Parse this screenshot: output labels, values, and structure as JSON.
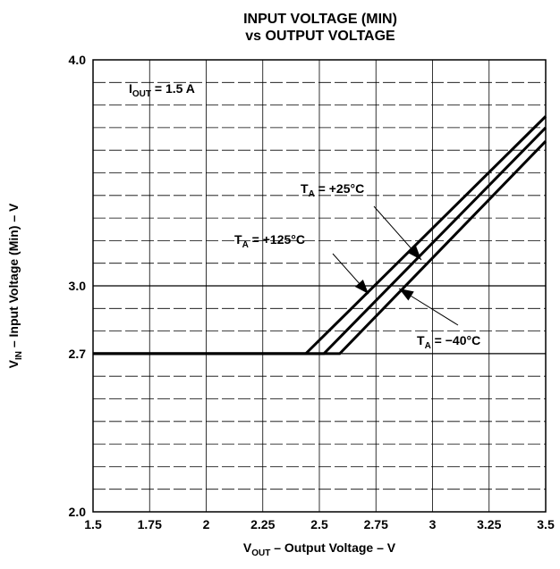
{
  "chart_data": {
    "type": "line",
    "title_lines": [
      "INPUT VOLTAGE (MIN)",
      "vs OUTPUT VOLTAGE"
    ],
    "xlabel": {
      "main": "V",
      "sub": "OUT",
      "rest": " – Output Voltage – V"
    },
    "ylabel": {
      "main": "V",
      "sub": "IN",
      "rest": " – Input Voltage (Min) – V"
    },
    "xlim": [
      1.5,
      3.5
    ],
    "ylim": [
      2.0,
      4.0
    ],
    "x_ticks": [
      1.5,
      1.75,
      2.0,
      2.25,
      2.5,
      2.75,
      3.0,
      3.25,
      3.5
    ],
    "x_tick_labels": [
      "1.5",
      "1.75",
      "2",
      "2.25",
      "2.5",
      "2.75",
      "3",
      "3.25",
      "3.5"
    ],
    "y_ticks": [
      2.0,
      2.7,
      3.0,
      4.0
    ],
    "y_tick_labels": [
      "2.0",
      "2.7",
      "3.0",
      "4.0"
    ],
    "y_grid": [
      2.1,
      2.2,
      2.3,
      2.4,
      2.5,
      2.6,
      2.7,
      2.8,
      2.9,
      3.0,
      3.1,
      3.2,
      3.3,
      3.4,
      3.5,
      3.6,
      3.7,
      3.8,
      3.9
    ],
    "grid": true,
    "annotation": {
      "main": "I",
      "sub": "OUT",
      "rest": " = 1.5 A"
    },
    "series": [
      {
        "name": "TA = +125°C",
        "label": {
          "main": "T",
          "sub": "A",
          "rest": " = +125°C"
        },
        "x": [
          1.5,
          2.44,
          3.5
        ],
        "y": [
          2.7,
          2.7,
          3.75
        ]
      },
      {
        "name": "TA = +25°C",
        "label": {
          "main": "T",
          "sub": "A",
          "rest": " = +25°C"
        },
        "x": [
          1.5,
          2.52,
          3.5
        ],
        "y": [
          2.7,
          2.7,
          3.7
        ]
      },
      {
        "name": "TA = −40°C",
        "label": {
          "main": "T",
          "sub": "A",
          "rest": " = −40°C"
        },
        "x": [
          1.5,
          2.59,
          3.5
        ],
        "y": [
          2.7,
          2.7,
          3.64
        ]
      }
    ],
    "colors": {
      "line": "#000000",
      "grid": "#000000"
    }
  }
}
